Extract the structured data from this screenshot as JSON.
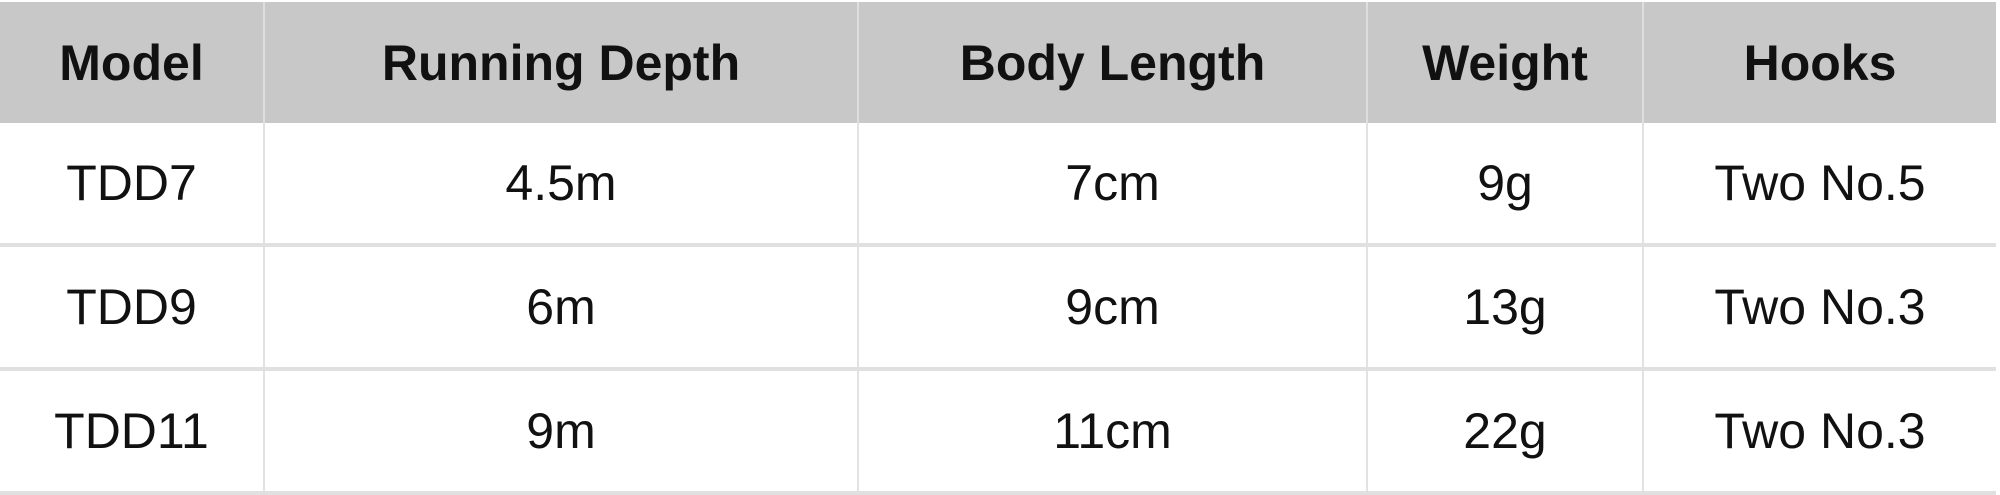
{
  "table": {
    "headers": [
      "Model",
      "Running Depth",
      "Body Length",
      "Weight",
      "Hooks"
    ],
    "rows": [
      [
        "TDD7",
        "4.5m",
        "7cm",
        "9g",
        "Two No.5"
      ],
      [
        "TDD9",
        "6m",
        "9cm",
        "13g",
        "Two No.3"
      ],
      [
        "TDD11",
        "9m",
        "11cm",
        "22g",
        "Two No.3"
      ]
    ]
  }
}
